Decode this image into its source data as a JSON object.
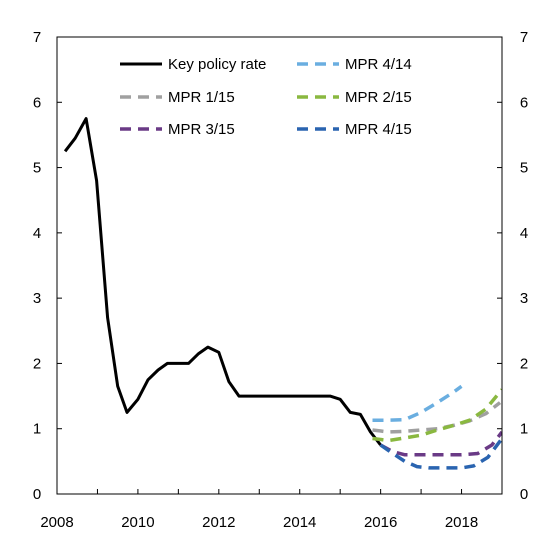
{
  "chart_data": {
    "type": "line",
    "title": "",
    "xlabel": "",
    "ylabel": "",
    "xlim": [
      2008,
      2019
    ],
    "ylim": [
      0,
      7
    ],
    "x_ticks": [
      "2008",
      "2010",
      "2012",
      "2014",
      "2016",
      "2018"
    ],
    "y_ticks": [
      "0",
      "1",
      "2",
      "3",
      "4",
      "5",
      "6",
      "7"
    ],
    "grid": false,
    "legend_position": "top",
    "series": [
      {
        "name": "Key policy rate",
        "color": "#000000",
        "style": "solid",
        "points": [
          [
            2008.2,
            5.25
          ],
          [
            2008.45,
            5.45
          ],
          [
            2008.72,
            5.75
          ],
          [
            2008.98,
            4.8
          ],
          [
            2009.25,
            2.7
          ],
          [
            2009.5,
            1.65
          ],
          [
            2009.73,
            1.25
          ],
          [
            2010.0,
            1.45
          ],
          [
            2010.25,
            1.75
          ],
          [
            2010.5,
            1.9
          ],
          [
            2010.73,
            2.0
          ],
          [
            2011.0,
            2.0
          ],
          [
            2011.25,
            2.0
          ],
          [
            2011.5,
            2.15
          ],
          [
            2011.73,
            2.25
          ],
          [
            2012.0,
            2.17
          ],
          [
            2012.25,
            1.72
          ],
          [
            2012.5,
            1.5
          ],
          [
            2013.0,
            1.5
          ],
          [
            2013.5,
            1.5
          ],
          [
            2014.0,
            1.5
          ],
          [
            2014.5,
            1.5
          ],
          [
            2014.75,
            1.5
          ],
          [
            2015.0,
            1.45
          ],
          [
            2015.25,
            1.25
          ],
          [
            2015.5,
            1.22
          ],
          [
            2015.75,
            0.95
          ],
          [
            2016.0,
            0.75
          ]
        ]
      },
      {
        "name": "MPR 4/14",
        "color": "#6aaee0",
        "style": "dashed",
        "points": [
          [
            2015.8,
            1.13
          ],
          [
            2016.2,
            1.13
          ],
          [
            2016.6,
            1.14
          ],
          [
            2017.0,
            1.25
          ],
          [
            2017.4,
            1.4
          ],
          [
            2017.8,
            1.56
          ],
          [
            2018.0,
            1.65
          ]
        ]
      },
      {
        "name": "MPR 1/15",
        "color": "#a0a0a0",
        "style": "dashed",
        "points": [
          [
            2015.8,
            0.98
          ],
          [
            2016.2,
            0.95
          ],
          [
            2016.6,
            0.96
          ],
          [
            2017.0,
            0.98
          ],
          [
            2017.4,
            1.0
          ],
          [
            2017.8,
            1.05
          ],
          [
            2018.2,
            1.12
          ],
          [
            2018.6,
            1.23
          ],
          [
            2018.95,
            1.4
          ]
        ]
      },
      {
        "name": "MPR 2/15",
        "color": "#8ab840",
        "style": "dashed",
        "points": [
          [
            2015.8,
            0.85
          ],
          [
            2016.2,
            0.82
          ],
          [
            2016.6,
            0.86
          ],
          [
            2017.0,
            0.9
          ],
          [
            2017.4,
            0.98
          ],
          [
            2017.8,
            1.05
          ],
          [
            2018.2,
            1.13
          ],
          [
            2018.6,
            1.3
          ],
          [
            2019.0,
            1.6
          ]
        ]
      },
      {
        "name": "MPR 3/15",
        "color": "#6a3a86",
        "style": "dashed",
        "points": [
          [
            2016.0,
            0.75
          ],
          [
            2016.3,
            0.65
          ],
          [
            2016.6,
            0.6
          ],
          [
            2017.0,
            0.6
          ],
          [
            2017.5,
            0.6
          ],
          [
            2018.0,
            0.6
          ],
          [
            2018.4,
            0.62
          ],
          [
            2018.75,
            0.75
          ],
          [
            2019.0,
            0.95
          ]
        ]
      },
      {
        "name": "MPR 4/15",
        "color": "#2a64b0",
        "style": "dashed",
        "points": [
          [
            2016.0,
            0.75
          ],
          [
            2016.3,
            0.62
          ],
          [
            2016.6,
            0.5
          ],
          [
            2016.9,
            0.42
          ],
          [
            2017.2,
            0.4
          ],
          [
            2017.6,
            0.4
          ],
          [
            2018.0,
            0.4
          ],
          [
            2018.3,
            0.43
          ],
          [
            2018.65,
            0.56
          ],
          [
            2019.0,
            0.85
          ]
        ]
      }
    ]
  }
}
